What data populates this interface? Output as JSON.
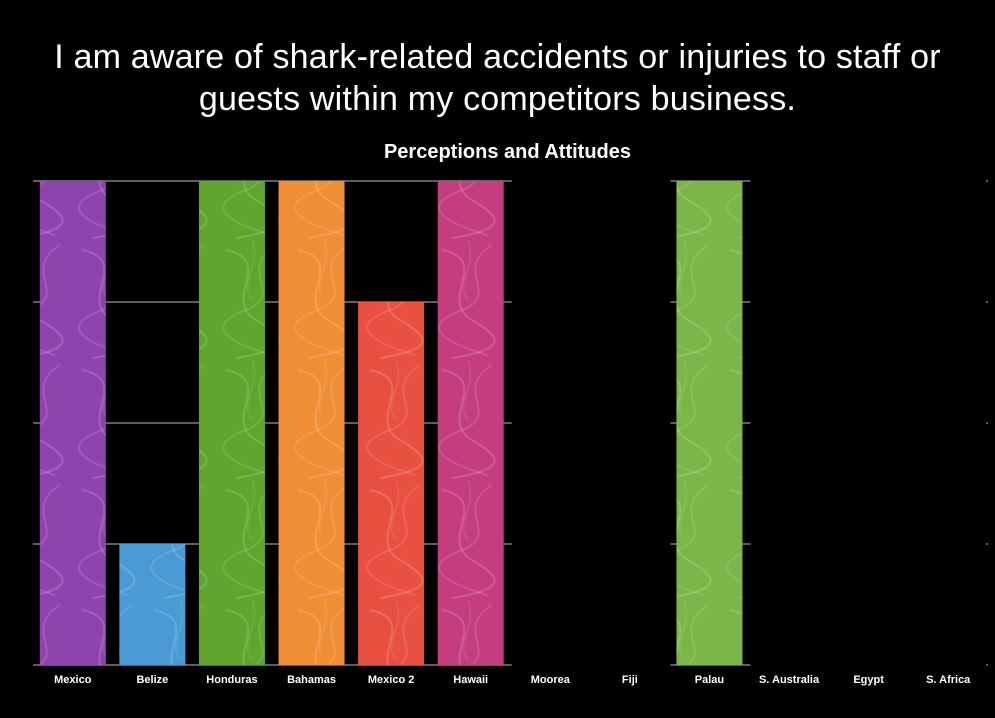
{
  "slide": {
    "title_line1": "I am aware of shark-related accidents or injuries to staff or",
    "title_line2": "guests within my competitors business."
  },
  "chart_data": {
    "type": "bar",
    "title": "Perceptions and Attitudes",
    "categories": [
      "Mexico",
      "Belize",
      "Honduras",
      "Bahamas",
      "Mexico 2",
      "Hawaii",
      "Moorea",
      "Fiji",
      "Palau",
      "S. Australia",
      "Egypt",
      "S. Africa"
    ],
    "values": [
      4,
      1,
      4,
      4,
      3,
      4,
      null,
      null,
      4,
      null,
      null,
      null
    ],
    "colors": [
      "#8e44ad",
      "#4a9ad3",
      "#5fa52e",
      "#ef8e34",
      "#e8503f",
      "#c43d7e",
      null,
      null,
      "#7ab648",
      null,
      null,
      null
    ],
    "ylim": [
      0,
      4
    ],
    "y_ticks": [
      0,
      1,
      2,
      3,
      4
    ],
    "grid": true,
    "xlabel": "",
    "ylabel": ""
  }
}
